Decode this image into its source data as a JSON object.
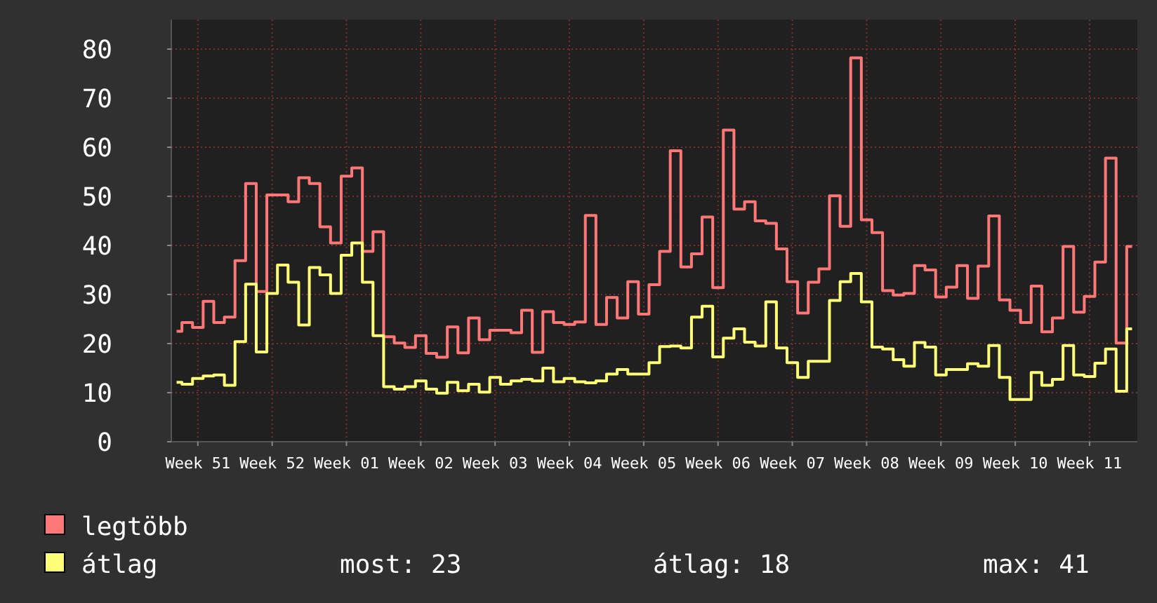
{
  "chart_data": {
    "type": "step",
    "categories": [
      null,
      null,
      "Week 51",
      null,
      null,
      null,
      null,
      null,
      null,
      "Week 52",
      null,
      null,
      null,
      null,
      null,
      null,
      "Week 01",
      null,
      null,
      null,
      null,
      null,
      null,
      "Week 02",
      null,
      null,
      null,
      null,
      null,
      null,
      "Week 03",
      null,
      null,
      null,
      null,
      null,
      null,
      "Week 04",
      null,
      null,
      null,
      null,
      null,
      null,
      "Week 05",
      null,
      null,
      null,
      null,
      null,
      null,
      "Week 06",
      null,
      null,
      null,
      null,
      null,
      null,
      "Week 07",
      null,
      null,
      null,
      null,
      null,
      null,
      "Week 08",
      null,
      null,
      null,
      null,
      null,
      null,
      "Week 09",
      null,
      null,
      null,
      null,
      null,
      null,
      "Week 10",
      null,
      null,
      null,
      null,
      null,
      null,
      "Week 11",
      null,
      null,
      null,
      null
    ],
    "ylim": [
      0,
      86
    ],
    "yticks": [
      0,
      10,
      20,
      30,
      40,
      50,
      60,
      70,
      80
    ],
    "grid": true,
    "legend": "bottom",
    "series": [
      {
        "name": "legtöbb",
        "color": "#ff7777",
        "values": [
          22.5,
          24.3,
          23.3,
          28.6,
          24.3,
          25.4,
          36.9,
          52.6,
          30.6,
          50.3,
          50.3,
          48.9,
          53.8,
          52.6,
          43.8,
          40.5,
          54.1,
          55.8,
          38.8,
          42.8,
          21.4,
          20.1,
          19.2,
          21.6,
          18.0,
          17.2,
          23.4,
          18.1,
          25.2,
          20.8,
          22.7,
          22.7,
          22.2,
          26.8,
          18.2,
          26.5,
          24.3,
          23.9,
          24.4,
          46.1,
          23.9,
          29.4,
          25.2,
          32.6,
          26.0,
          32.0,
          38.8,
          59.3,
          35.6,
          38.3,
          45.8,
          31.4,
          63.5,
          47.4,
          48.9,
          45.0,
          44.5,
          39.3,
          32.6,
          26.2,
          32.5,
          35.2,
          50.1,
          43.9,
          78.2,
          45.2,
          42.6,
          30.8,
          29.9,
          30.2,
          35.9,
          35.0,
          29.5,
          31.5,
          35.9,
          29.2,
          35.8,
          46.0,
          28.9,
          26.8,
          24.3,
          31.7,
          22.4,
          25.2,
          39.8,
          26.4,
          29.6,
          36.6,
          57.8,
          20.1,
          39.8
        ]
      },
      {
        "name": "átlag",
        "color": "#ffff77",
        "values": [
          12.1,
          11.7,
          12.9,
          13.4,
          13.6,
          11.5,
          20.4,
          32.1,
          18.3,
          30.2,
          36.0,
          32.5,
          23.8,
          35.5,
          34.0,
          30.2,
          38.0,
          40.5,
          32.5,
          21.6,
          11.2,
          10.7,
          11.2,
          12.4,
          10.7,
          9.9,
          12.1,
          10.4,
          11.7,
          10.1,
          13.1,
          11.7,
          12.4,
          12.7,
          12.4,
          15.0,
          12.2,
          12.9,
          12.2,
          12.0,
          12.4,
          13.8,
          14.7,
          13.8,
          13.8,
          16.1,
          19.4,
          19.5,
          19.1,
          25.4,
          27.6,
          17.3,
          21.1,
          23.0,
          20.3,
          19.5,
          28.5,
          19.1,
          16.1,
          13.1,
          16.4,
          16.4,
          28.8,
          32.6,
          34.3,
          28.5,
          19.3,
          18.9,
          16.7,
          15.4,
          20.2,
          19.3,
          13.6,
          14.7,
          14.7,
          15.9,
          15.4,
          19.6,
          13.1,
          8.6,
          8.6,
          14.1,
          11.5,
          12.7,
          19.6,
          13.6,
          13.3,
          16.0,
          18.9,
          10.3,
          23.0
        ]
      }
    ],
    "annotations": [
      "most: 23",
      "átlag: 18",
      "max: 41"
    ]
  }
}
